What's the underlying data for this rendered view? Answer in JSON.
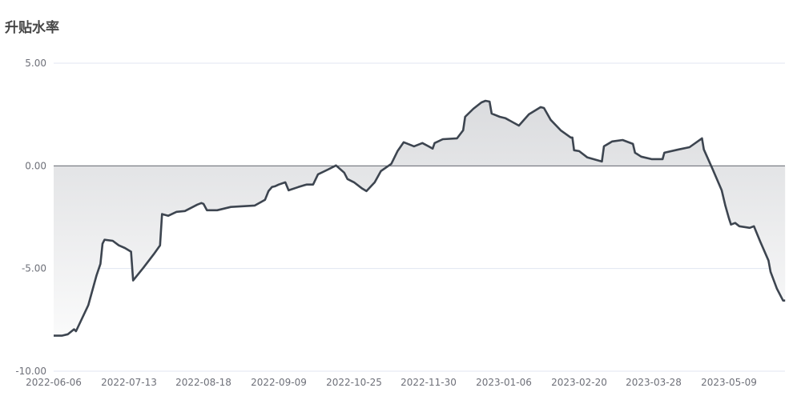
{
  "chart_data": {
    "type": "area",
    "title": "升贴水率",
    "xlabel": "",
    "ylabel": "",
    "ylim": [
      -10,
      5
    ],
    "yticks": [
      "5.00",
      "0.00",
      "-5.00",
      "-10.00"
    ],
    "ytick_values": [
      5,
      0,
      -5,
      -10
    ],
    "xticks": [
      "2022-06-06",
      "2022-07-13",
      "2022-08-18",
      "2022-09-09",
      "2022-10-25",
      "2022-11-30",
      "2023-01-06",
      "2023-02-20",
      "2023-03-28",
      "2023-05-09"
    ],
    "grid": true,
    "legend": "none",
    "colors": {
      "line": "#3d4550",
      "area_top": "#d9dadd",
      "area_bottom": "#ffffff",
      "grid": "#e0e6f1",
      "zero_line": "#6e7079"
    },
    "points": [
      [
        "2022-06-06",
        -8.27
      ],
      [
        "2022-06-10",
        -8.27
      ],
      [
        "2022-06-13",
        -8.2
      ],
      [
        "2022-06-16",
        -7.96
      ],
      [
        "2022-06-17",
        -8.05
      ],
      [
        "2022-06-23",
        -6.79
      ],
      [
        "2022-06-27",
        -5.35
      ],
      [
        "2022-06-29",
        -4.77
      ],
      [
        "2022-06-30",
        -3.79
      ],
      [
        "2022-07-01",
        -3.6
      ],
      [
        "2022-07-05",
        -3.65
      ],
      [
        "2022-07-08",
        -3.87
      ],
      [
        "2022-07-11",
        -4.0
      ],
      [
        "2022-07-14",
        -4.18
      ],
      [
        "2022-07-15",
        -5.58
      ],
      [
        "2022-07-20",
        -4.96
      ],
      [
        "2022-07-25",
        -4.3
      ],
      [
        "2022-07-28",
        -3.87
      ],
      [
        "2022-07-29",
        -2.35
      ],
      [
        "2022-08-01",
        -2.43
      ],
      [
        "2022-08-05",
        -2.24
      ],
      [
        "2022-08-09",
        -2.2
      ],
      [
        "2022-08-15",
        -1.89
      ],
      [
        "2022-08-17",
        -1.81
      ],
      [
        "2022-08-18",
        -1.85
      ],
      [
        "2022-08-19",
        -2.16
      ],
      [
        "2022-08-22",
        -2.16
      ],
      [
        "2022-08-26",
        -2.0
      ],
      [
        "2022-09-02",
        -1.93
      ],
      [
        "2022-09-05",
        -1.65
      ],
      [
        "2022-09-06",
        -1.23
      ],
      [
        "2022-09-07",
        -1.03
      ],
      [
        "2022-09-08",
        -0.99
      ],
      [
        "2022-09-09",
        -0.91
      ],
      [
        "2022-09-13",
        -0.8
      ],
      [
        "2022-09-15",
        -1.19
      ],
      [
        "2022-09-21",
        -1.03
      ],
      [
        "2022-09-26",
        -0.91
      ],
      [
        "2022-09-30",
        -0.91
      ],
      [
        "2022-10-03",
        -0.41
      ],
      [
        "2022-10-09",
        -0.18
      ],
      [
        "2022-10-14",
        0.02
      ],
      [
        "2022-10-19",
        -0.33
      ],
      [
        "2022-10-21",
        -0.64
      ],
      [
        "2022-10-25",
        -0.8
      ],
      [
        "2022-10-29",
        -1.11
      ],
      [
        "2022-10-31",
        -1.23
      ],
      [
        "2022-11-04",
        -0.8
      ],
      [
        "2022-11-07",
        -0.25
      ],
      [
        "2022-11-12",
        0.1
      ],
      [
        "2022-11-15",
        0.72
      ],
      [
        "2022-11-18",
        1.15
      ],
      [
        "2022-11-23",
        0.95
      ],
      [
        "2022-11-27",
        1.11
      ],
      [
        "2022-11-30",
        0.95
      ],
      [
        "2022-12-02",
        0.84
      ],
      [
        "2022-12-03",
        1.11
      ],
      [
        "2022-12-07",
        1.3
      ],
      [
        "2022-12-14",
        1.34
      ],
      [
        "2022-12-17",
        1.73
      ],
      [
        "2022-12-18",
        2.39
      ],
      [
        "2022-12-22",
        2.78
      ],
      [
        "2022-12-26",
        3.09
      ],
      [
        "2022-12-28",
        3.17
      ],
      [
        "2022-12-30",
        3.13
      ],
      [
        "2022-12-31",
        2.55
      ],
      [
        "2023-01-04",
        2.39
      ],
      [
        "2023-01-07",
        2.32
      ],
      [
        "2023-01-15",
        1.96
      ],
      [
        "2023-01-21",
        2.51
      ],
      [
        "2023-01-28",
        2.86
      ],
      [
        "2023-01-30",
        2.82
      ],
      [
        "2023-02-03",
        2.24
      ],
      [
        "2023-02-09",
        1.73
      ],
      [
        "2023-02-15",
        1.38
      ],
      [
        "2023-02-16",
        1.38
      ],
      [
        "2023-02-17",
        0.76
      ],
      [
        "2023-02-20",
        0.72
      ],
      [
        "2023-02-24",
        0.41
      ],
      [
        "2023-03-03",
        0.21
      ],
      [
        "2023-03-04",
        0.95
      ],
      [
        "2023-03-08",
        1.19
      ],
      [
        "2023-03-13",
        1.26
      ],
      [
        "2023-03-18",
        1.07
      ],
      [
        "2023-03-19",
        0.64
      ],
      [
        "2023-03-22",
        0.45
      ],
      [
        "2023-03-27",
        0.33
      ],
      [
        "2023-04-02",
        0.33
      ],
      [
        "2023-04-03",
        0.64
      ],
      [
        "2023-04-11",
        0.8
      ],
      [
        "2023-04-17",
        0.91
      ],
      [
        "2023-04-24",
        1.34
      ],
      [
        "2023-04-25",
        0.8
      ],
      [
        "2023-04-30",
        -0.18
      ],
      [
        "2023-05-05",
        -1.19
      ],
      [
        "2023-05-07",
        -1.93
      ],
      [
        "2023-05-09",
        -2.55
      ],
      [
        "2023-05-10",
        -2.86
      ],
      [
        "2023-05-12",
        -2.78
      ],
      [
        "2023-05-14",
        -2.94
      ],
      [
        "2023-05-19",
        -3.02
      ],
      [
        "2023-05-21",
        -2.94
      ],
      [
        "2023-05-24",
        -3.68
      ],
      [
        "2023-05-28",
        -4.61
      ],
      [
        "2023-05-29",
        -5.16
      ],
      [
        "2023-06-01",
        -5.97
      ],
      [
        "2023-06-04",
        -6.56
      ],
      [
        "2023-06-05",
        -6.56
      ]
    ]
  }
}
